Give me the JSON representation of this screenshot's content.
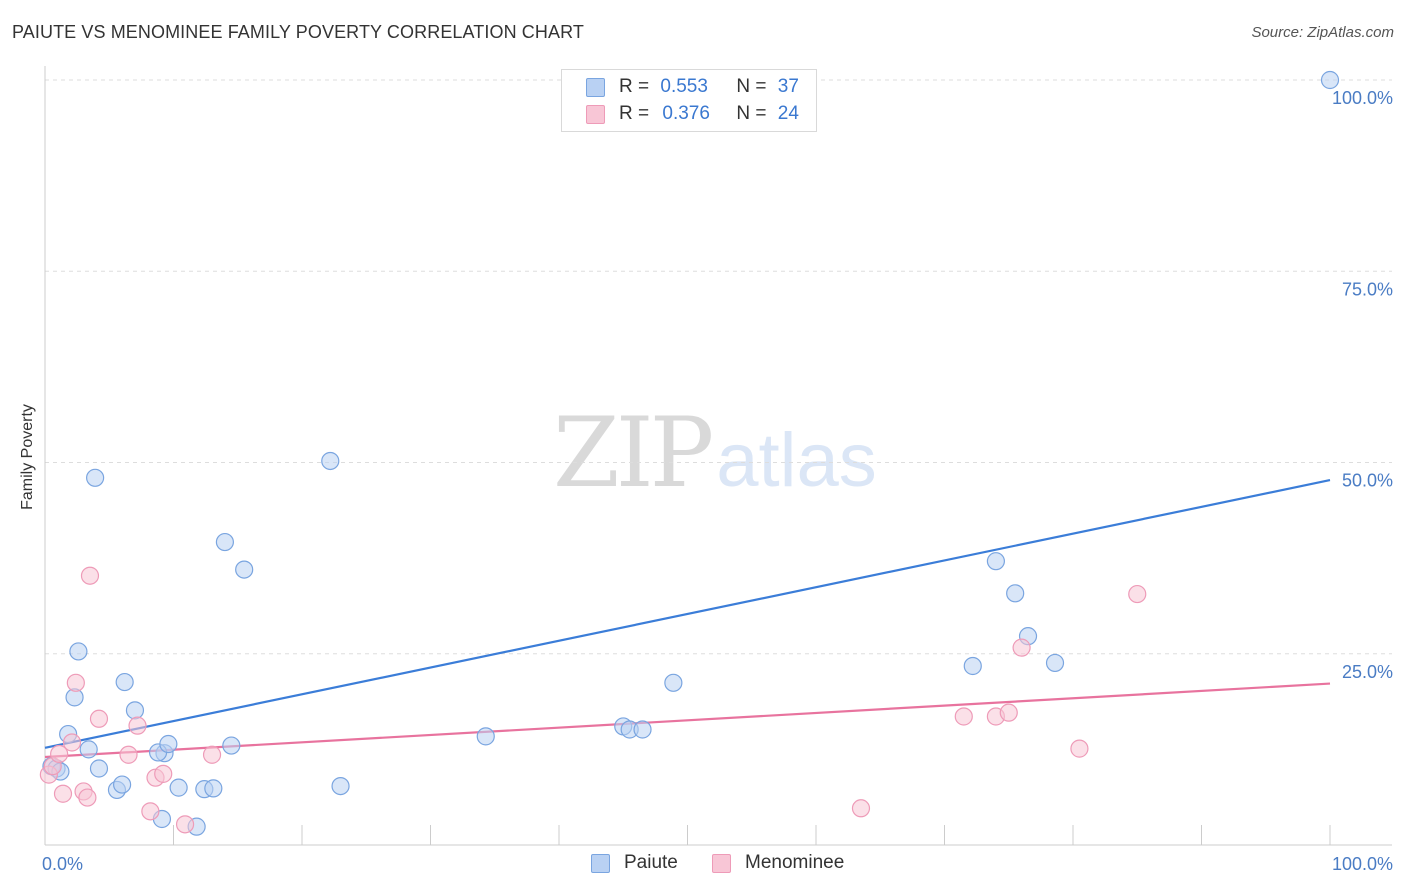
{
  "header": {
    "title": "PAIUTE VS MENOMINEE FAMILY POVERTY CORRELATION CHART",
    "source": "Source: ZipAtlas.com"
  },
  "watermark": {
    "zip": "ZIP",
    "atlas": "atlas"
  },
  "legend": {
    "r_label": "R =",
    "n_label": "N =",
    "rows": [
      {
        "series": "Paiute",
        "r": "0.553",
        "n": "37"
      },
      {
        "series": "Menominee",
        "r": "0.376",
        "n": "24"
      }
    ]
  },
  "bottom_legend": {
    "paiute": "Paiute",
    "menominee": "Menominee"
  },
  "chart_data": {
    "type": "scatter",
    "title": "PAIUTE VS MENOMINEE FAMILY POVERTY CORRELATION CHART",
    "xlabel": "",
    "ylabel": "Family Poverty",
    "xlim": [
      0,
      100
    ],
    "ylim": [
      0,
      100
    ],
    "x_tick_labels": [
      "0.0%",
      "100.0%"
    ],
    "y_tick_labels": [
      {
        "value": 25,
        "label": "25.0%"
      },
      {
        "value": 50,
        "label": "50.0%"
      },
      {
        "value": 75,
        "label": "75.0%"
      },
      {
        "value": 100,
        "label": "100.0%"
      }
    ],
    "grid": true,
    "colors": {
      "paiute": "#3b7dd8",
      "menominee": "#e8739e"
    },
    "series": [
      {
        "name": "Paiute",
        "r": 0.553,
        "n": 37,
        "trend": {
          "x": [
            0,
            100
          ],
          "y": [
            12.7,
            47.7
          ]
        },
        "points": [
          [
            100,
            100
          ],
          [
            22.2,
            50.2
          ],
          [
            3.9,
            48.0
          ],
          [
            14.0,
            39.6
          ],
          [
            15.5,
            36.0
          ],
          [
            2.6,
            25.3
          ],
          [
            6.2,
            21.3
          ],
          [
            2.3,
            19.3
          ],
          [
            7.0,
            17.6
          ],
          [
            1.8,
            14.5
          ],
          [
            3.4,
            12.5
          ],
          [
            9.3,
            12.0
          ],
          [
            8.8,
            12.1
          ],
          [
            9.6,
            13.2
          ],
          [
            14.5,
            13.0
          ],
          [
            0.5,
            10.3
          ],
          [
            0.9,
            10.0
          ],
          [
            1.2,
            9.6
          ],
          [
            4.2,
            10.0
          ],
          [
            5.6,
            7.2
          ],
          [
            6.0,
            7.9
          ],
          [
            10.4,
            7.5
          ],
          [
            12.4,
            7.3
          ],
          [
            13.1,
            7.4
          ],
          [
            9.1,
            3.4
          ],
          [
            11.8,
            2.4
          ],
          [
            23.0,
            7.7
          ],
          [
            34.3,
            14.2
          ],
          [
            45.0,
            15.5
          ],
          [
            45.5,
            15.1
          ],
          [
            46.5,
            15.1
          ],
          [
            48.9,
            21.2
          ],
          [
            72.2,
            23.4
          ],
          [
            74.0,
            37.1
          ],
          [
            75.5,
            32.9
          ],
          [
            76.5,
            27.3
          ],
          [
            78.6,
            23.8
          ]
        ]
      },
      {
        "name": "Menominee",
        "r": 0.376,
        "n": 24,
        "trend": {
          "x": [
            0,
            100
          ],
          "y": [
            11.5,
            21.1
          ]
        },
        "points": [
          [
            0.3,
            9.2
          ],
          [
            0.6,
            10.3
          ],
          [
            1.1,
            11.9
          ],
          [
            1.4,
            6.7
          ],
          [
            2.1,
            13.4
          ],
          [
            2.4,
            21.2
          ],
          [
            3.0,
            7.0
          ],
          [
            3.3,
            6.2
          ],
          [
            3.5,
            35.2
          ],
          [
            4.2,
            16.5
          ],
          [
            6.5,
            11.8
          ],
          [
            7.2,
            15.6
          ],
          [
            8.2,
            4.4
          ],
          [
            8.6,
            8.8
          ],
          [
            9.2,
            9.3
          ],
          [
            10.9,
            2.7
          ],
          [
            13.0,
            11.8
          ],
          [
            63.5,
            4.8
          ],
          [
            71.5,
            16.8
          ],
          [
            74.0,
            16.8
          ],
          [
            75.0,
            17.3
          ],
          [
            76.0,
            25.8
          ],
          [
            80.5,
            12.6
          ],
          [
            85.0,
            32.8
          ]
        ]
      }
    ]
  }
}
